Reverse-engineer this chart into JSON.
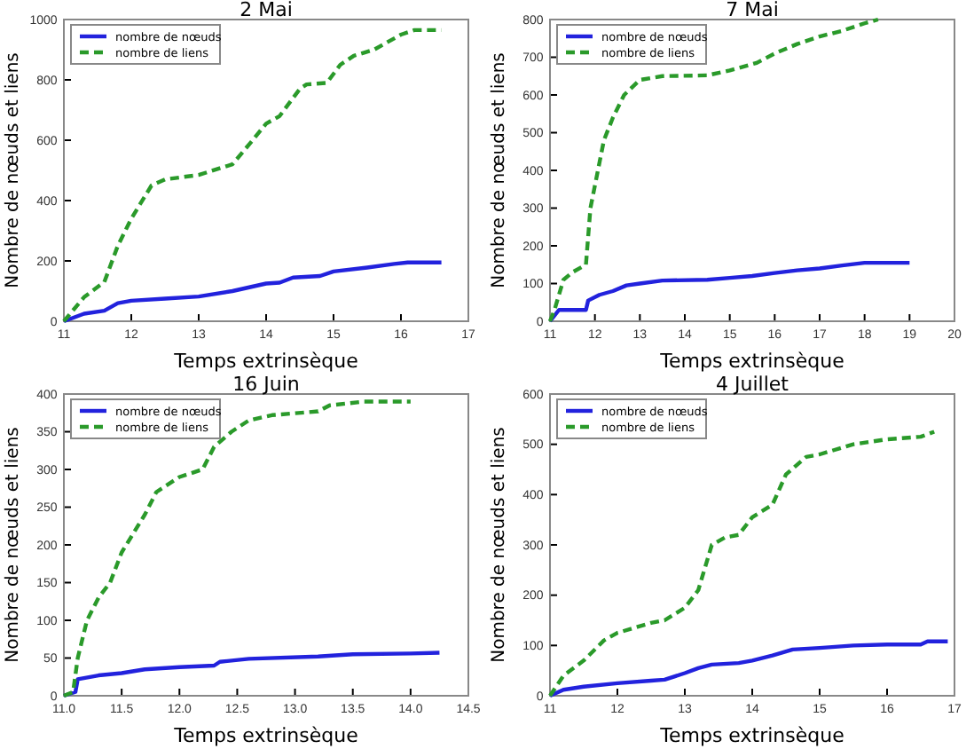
{
  "chart_data": [
    {
      "type": "line",
      "title": "2 Mai",
      "xlabel": "Temps extrinsèque",
      "ylabel": "Nombre de nœuds et liens",
      "xlim": [
        11,
        17
      ],
      "ylim": [
        0,
        1000
      ],
      "xticks": [
        11,
        12,
        13,
        14,
        15,
        16,
        17
      ],
      "yticks": [
        0,
        200,
        400,
        600,
        800,
        1000
      ],
      "legend": "top left",
      "grid": false,
      "series": [
        {
          "name": "nombre de nœuds",
          "color": "#2222dd",
          "line_style": "solid",
          "x": [
            11,
            11.3,
            11.6,
            11.8,
            12,
            12.5,
            13,
            13.5,
            14,
            14.2,
            14.4,
            14.8,
            15,
            15.5,
            15.9,
            16.1,
            16.6
          ],
          "values": [
            0,
            25,
            35,
            60,
            68,
            75,
            82,
            100,
            125,
            128,
            145,
            150,
            165,
            178,
            190,
            195,
            195
          ]
        },
        {
          "name": "nombre de liens",
          "color": "#2a9a2a",
          "line_style": "dashed",
          "x": [
            11,
            11.3,
            11.6,
            11.8,
            12,
            12.3,
            12.5,
            13,
            13.5,
            13.8,
            14,
            14.2,
            14.5,
            14.6,
            14.9,
            15.1,
            15.3,
            15.6,
            16,
            16.2,
            16.6
          ],
          "values": [
            0,
            80,
            130,
            250,
            340,
            450,
            470,
            485,
            520,
            600,
            655,
            680,
            770,
            785,
            790,
            850,
            880,
            900,
            950,
            965,
            965
          ]
        }
      ]
    },
    {
      "type": "line",
      "title": "7 Mai",
      "xlabel": "Temps extrinsèque",
      "ylabel": "Nombre de nœuds et liens",
      "xlim": [
        11,
        20
      ],
      "ylim": [
        0,
        800
      ],
      "xticks": [
        11,
        12,
        13,
        14,
        15,
        16,
        17,
        18,
        19,
        20
      ],
      "yticks": [
        0,
        100,
        200,
        300,
        400,
        500,
        600,
        700,
        800
      ],
      "legend": "top left",
      "grid": false,
      "series": [
        {
          "name": "nombre de nœuds",
          "color": "#2222dd",
          "line_style": "solid",
          "x": [
            11,
            11.1,
            11.2,
            11.8,
            11.85,
            12.1,
            12.4,
            12.7,
            13,
            13.5,
            14.5,
            15,
            15.5,
            16,
            16.5,
            17,
            17.5,
            18,
            19
          ],
          "values": [
            0,
            15,
            30,
            30,
            55,
            70,
            80,
            95,
            100,
            108,
            110,
            115,
            120,
            128,
            135,
            140,
            148,
            155,
            155
          ]
        },
        {
          "name": "nombre de liens",
          "color": "#2a9a2a",
          "line_style": "dashed",
          "x": [
            11,
            11.1,
            11.3,
            11.5,
            11.8,
            11.9,
            12.2,
            12.4,
            12.65,
            13,
            13.5,
            14.5,
            15,
            15.6,
            16,
            16.5,
            17,
            17.5,
            18,
            18.3
          ],
          "values": [
            0,
            30,
            110,
            130,
            150,
            300,
            480,
            540,
            600,
            640,
            650,
            652,
            665,
            685,
            710,
            735,
            755,
            770,
            790,
            800
          ]
        }
      ]
    },
    {
      "type": "line",
      "title": "16 Juin",
      "xlabel": "Temps extrinsèque",
      "ylabel": "Nombre de nœuds et liens",
      "xlim": [
        11,
        14.5
      ],
      "ylim": [
        0,
        400
      ],
      "xticks": [
        {
          "value": 11,
          "label": "11.0"
        },
        11.5,
        {
          "value": 12,
          "label": "12.0"
        },
        12.5,
        {
          "value": 13,
          "label": "13.0"
        },
        13.5,
        {
          "value": 14,
          "label": "14.0"
        },
        14.5
      ],
      "yticks": [
        0,
        50,
        100,
        150,
        200,
        250,
        300,
        350,
        400
      ],
      "legend": "top left",
      "grid": false,
      "series": [
        {
          "name": "nombre de nœuds",
          "color": "#2222dd",
          "line_style": "solid",
          "x": [
            11,
            11.1,
            11.12,
            11.3,
            11.5,
            11.7,
            12,
            12.3,
            12.35,
            12.6,
            13.2,
            13.5,
            14,
            14.25
          ],
          "values": [
            0,
            5,
            22,
            27,
            30,
            35,
            38,
            40,
            45,
            49,
            52,
            55,
            56,
            57
          ]
        },
        {
          "name": "nombre de liens",
          "color": "#2a9a2a",
          "line_style": "dashed",
          "x": [
            11,
            11.08,
            11.12,
            11.2,
            11.3,
            11.4,
            11.5,
            11.7,
            11.8,
            12,
            12.2,
            12.3,
            12.45,
            12.6,
            12.8,
            13.2,
            13.3,
            13.6,
            14
          ],
          "values": [
            0,
            5,
            50,
            100,
            130,
            150,
            190,
            240,
            270,
            290,
            300,
            330,
            350,
            365,
            372,
            377,
            385,
            390,
            390
          ]
        }
      ]
    },
    {
      "type": "line",
      "title": "4 Juillet",
      "xlabel": "Temps extrinsèque",
      "ylabel": "Nombre de nœuds et liens",
      "xlim": [
        11,
        17
      ],
      "ylim": [
        0,
        600
      ],
      "xticks": [
        11,
        12,
        13,
        14,
        15,
        16,
        17
      ],
      "yticks": [
        0,
        100,
        200,
        300,
        400,
        500,
        600
      ],
      "legend": "top left",
      "grid": false,
      "series": [
        {
          "name": "nombre de nœuds",
          "color": "#2222dd",
          "line_style": "solid",
          "x": [
            11,
            11.2,
            11.5,
            12,
            12.5,
            12.7,
            13,
            13.2,
            13.4,
            13.8,
            14,
            14.3,
            14.6,
            15,
            15.5,
            16,
            16.5,
            16.6,
            16.9
          ],
          "values": [
            0,
            12,
            18,
            25,
            30,
            32,
            45,
            55,
            62,
            65,
            70,
            80,
            92,
            95,
            100,
            102,
            102,
            108,
            108
          ]
        },
        {
          "name": "nombre de liens",
          "color": "#2a9a2a",
          "line_style": "dashed",
          "x": [
            11,
            11.2,
            11.5,
            11.8,
            12,
            12.5,
            12.7,
            13,
            13.2,
            13.4,
            13.6,
            13.8,
            14,
            14.3,
            14.5,
            14.8,
            15,
            15.5,
            16,
            16.5,
            16.7
          ],
          "values": [
            0,
            40,
            70,
            110,
            125,
            145,
            150,
            175,
            210,
            300,
            315,
            320,
            355,
            380,
            440,
            475,
            480,
            500,
            510,
            515,
            525
          ]
        }
      ]
    }
  ]
}
